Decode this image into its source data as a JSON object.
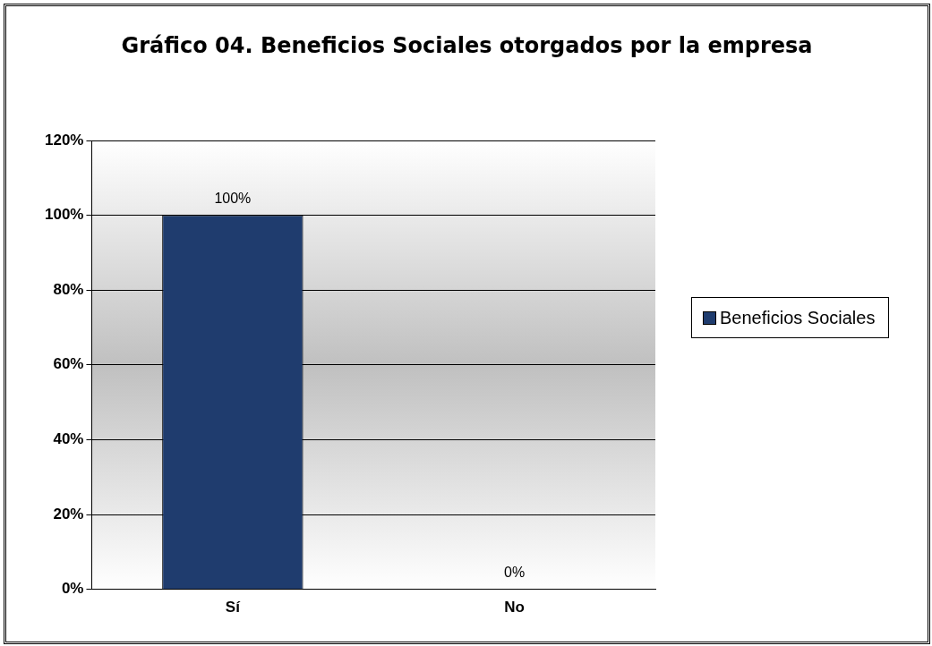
{
  "chart_data": {
    "type": "bar",
    "title": "Gráfico 04. Beneficios Sociales otorgados por la empresa",
    "categories": [
      "Sí",
      "No"
    ],
    "series": [
      {
        "name": "Beneficios Sociales",
        "color": "#1f3c6e",
        "values": [
          100,
          0
        ],
        "value_labels": [
          "100%",
          "0%"
        ]
      }
    ],
    "ylim": [
      0,
      120
    ],
    "yticks": [
      {
        "value": 0,
        "label": "0%"
      },
      {
        "value": 20,
        "label": "20%"
      },
      {
        "value": 40,
        "label": "40%"
      },
      {
        "value": 60,
        "label": "60%"
      },
      {
        "value": 80,
        "label": "80%"
      },
      {
        "value": 100,
        "label": "100%"
      },
      {
        "value": 120,
        "label": "120%"
      }
    ],
    "grid": "y",
    "legend": "right"
  }
}
